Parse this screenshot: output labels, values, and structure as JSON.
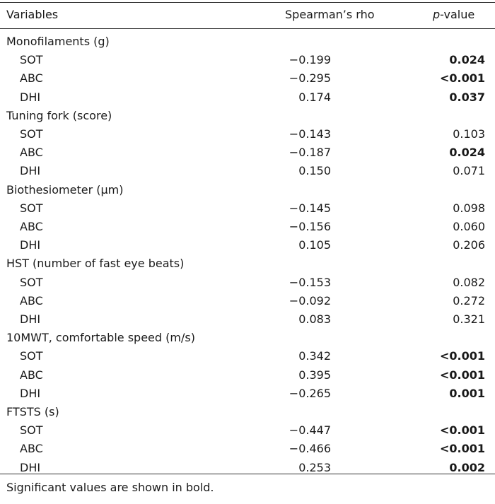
{
  "header": {
    "variables": "Variables",
    "rho": "Spearman’s rho",
    "p_italic": "p",
    "p_rest": "-value"
  },
  "groups": [
    {
      "label": "Monofilaments (g)",
      "rows": [
        {
          "name": "SOT",
          "rho": "−0.199",
          "p": "0.024",
          "bold": true
        },
        {
          "name": "ABC",
          "rho": "−0.295",
          "p": "<0.001",
          "bold": true
        },
        {
          "name": "DHI",
          "rho": "0.174",
          "p": "0.037",
          "bold": true
        }
      ]
    },
    {
      "label": "Tuning fork (score)",
      "rows": [
        {
          "name": "SOT",
          "rho": "−0.143",
          "p": "0.103",
          "bold": false
        },
        {
          "name": "ABC",
          "rho": "−0.187",
          "p": "0.024",
          "bold": true
        },
        {
          "name": "DHI",
          "rho": "0.150",
          "p": "0.071",
          "bold": false
        }
      ]
    },
    {
      "label": "Biothesiometer (μm)",
      "rows": [
        {
          "name": "SOT",
          "rho": "−0.145",
          "p": "0.098",
          "bold": false
        },
        {
          "name": "ABC",
          "rho": "−0.156",
          "p": "0.060",
          "bold": false
        },
        {
          "name": "DHI",
          "rho": "0.105",
          "p": "0.206",
          "bold": false
        }
      ]
    },
    {
      "label": "HST (number of fast eye beats)",
      "rows": [
        {
          "name": "SOT",
          "rho": "−0.153",
          "p": "0.082",
          "bold": false
        },
        {
          "name": "ABC",
          "rho": "−0.092",
          "p": "0.272",
          "bold": false
        },
        {
          "name": "DHI",
          "rho": "0.083",
          "p": "0.321",
          "bold": false
        }
      ]
    },
    {
      "label": "10MWT, comfortable speed (m/s)",
      "rows": [
        {
          "name": "SOT",
          "rho": "0.342",
          "p": "<0.001",
          "bold": true
        },
        {
          "name": "ABC",
          "rho": "0.395",
          "p": "<0.001",
          "bold": true
        },
        {
          "name": "DHI",
          "rho": "−0.265",
          "p": "0.001",
          "bold": true
        }
      ]
    },
    {
      "label": "FTSTS (s)",
      "rows": [
        {
          "name": "SOT",
          "rho": "−0.447",
          "p": "<0.001",
          "bold": true
        },
        {
          "name": "ABC",
          "rho": "−0.466",
          "p": "<0.001",
          "bold": true
        },
        {
          "name": "DHI",
          "rho": "0.253",
          "p": "0.002",
          "bold": true
        }
      ]
    }
  ],
  "footnote": "Significant values are shown in bold."
}
